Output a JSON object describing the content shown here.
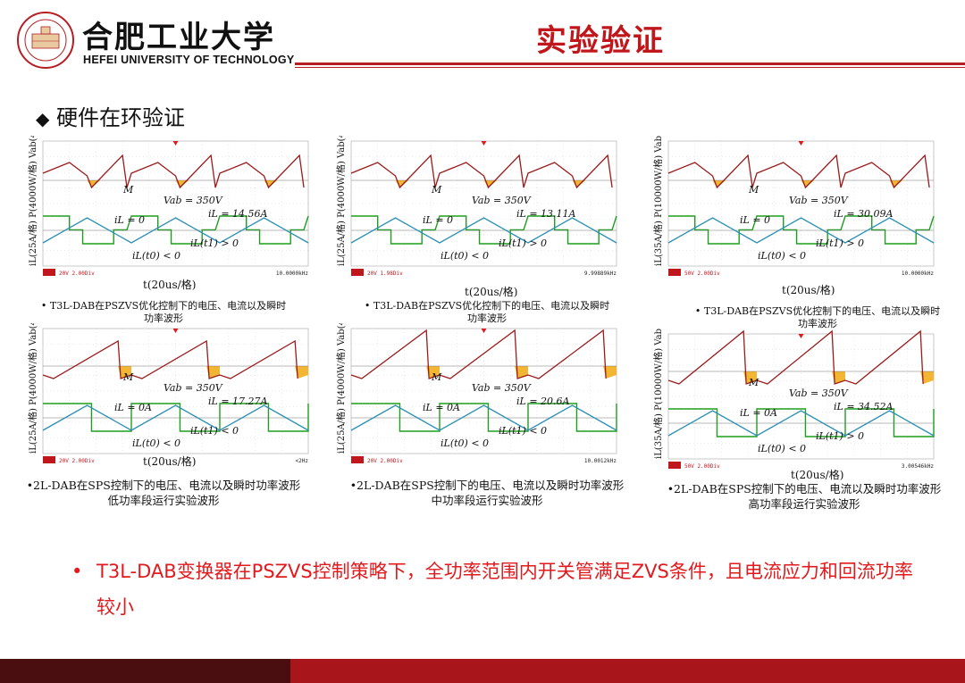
{
  "header": {
    "title": "实验验证",
    "university_cn": "合肥工业大学",
    "university_en": "HEFEI UNIVERSITY OF TECHNOLOGY",
    "accent_color": "#c0171c"
  },
  "section": {
    "bullet_icon": "diamond-icon",
    "heading": "硬件在环验证"
  },
  "panels": [
    {
      "y_label_power": "P(4000W/格)",
      "y_label_voltage": "Vab(400V / 格)",
      "y_label_current": "iL(25A/格)",
      "x_label": "t(20us/格)",
      "annotations": [
        "M",
        "Vab = 350V",
        "iL = 14.56A",
        "iL = 0",
        "iL(t1) > 0",
        "iL(t0) < 0"
      ],
      "status_left": "20V 2.00Div",
      "status_right": "10.0000kHz",
      "caption_line1": "T3L-DAB在PSZVS优化控制下的电压、电流以及瞬时",
      "caption_line2": "功率波形"
    },
    {
      "y_label_power": "P(4000W/格)",
      "y_label_voltage": "Vab(400V / 格)",
      "y_label_current": "iL(25A/格)",
      "x_label": "t(20us/格)",
      "annotations": [
        "M",
        "Vab = 350V",
        "iL = 13.11A",
        "iL = 0",
        "iL(t1) > 0",
        "iL(t0) < 0"
      ],
      "status_left": "20V 1.98Div",
      "status_right": "9.99889kHz",
      "caption_line1": "T3L-DAB在PSZVS优化控制下的电压、电流以及瞬时",
      "caption_line2": "功率波形"
    },
    {
      "y_label_power": "P(10000W/格)",
      "y_label_voltage": "Vab(400V / 格)",
      "y_label_current": "iL(35A/格)",
      "x_label": "t(20us/格)",
      "annotations": [
        "M",
        "Vab = 350V",
        "iL = 30.09A",
        "iL = 0",
        "iL(t1) > 0",
        "iL(t0) < 0"
      ],
      "status_left": "50V 2.00Div",
      "status_right": "10.0000kHz",
      "caption_line1": "T3L-DAB在PSZVS优化控制下的电压、电流以及瞬时",
      "caption_line2": "功率波形"
    },
    {
      "y_label_power": "P(4000W/格)",
      "y_label_voltage": "Vab(400V / 格)",
      "y_label_current": "iL(25A/格)",
      "x_label": "t(20us/格)",
      "annotations": [
        "M",
        "Vab = 350V",
        "iL = 17.27A",
        "iL = 0A",
        "iL(t1) < 0",
        "iL(t0) < 0"
      ],
      "status_left": "20V 2.00Div",
      "status_right": "<2Hz",
      "caption_line1": "•2L-DAB在SPS控制下的电压、电流以及瞬时功率波形",
      "caption_line2": "低功率段运行实验波形"
    },
    {
      "y_label_power": "P(4000W/格)",
      "y_label_voltage": "Vab(400V / 格)",
      "y_label_current": "iL(25A/格)",
      "x_label": "",
      "annotations": [
        "M",
        "Vab = 350V",
        "iL = 20.6A",
        "iL = 0A",
        "iL(t1) < 0",
        "iL(t0) < 0"
      ],
      "status_left": "20V 2.00Div",
      "status_right": "10.0012kHz",
      "caption_line1": "•2L-DAB在SPS控制下的电压、电流以及瞬时功率波形",
      "caption_line2": "中功率段运行实验波形"
    },
    {
      "y_label_power": "P(10000W/格)",
      "y_label_voltage": "Vab(400V / 格)",
      "y_label_current": "iL(35A/格)",
      "x_label": "t(20us/格)",
      "annotations": [
        "M",
        "Vab = 350V",
        "iL = 34.52A",
        "iL = 0A",
        "iL(t1) > 0",
        "iL(t0) < 0"
      ],
      "status_left": "50V 2.00Div",
      "status_right": "3.00546kHz",
      "caption_line1": "•2L-DAB在SPS控制下的电压、电流以及瞬时功率波形",
      "caption_line2": "高功率段运行实验波形"
    }
  ],
  "conclusion": {
    "bullet": "•",
    "text": "T3L-DAB变换器在PSZVS控制策略下，全功率范围内开关管满足ZVS条件，且电流应力和回流功率较小"
  },
  "colors": {
    "power_trace": "#9b1b1b",
    "voltage_trace": "#1e9e1e",
    "current_trace": "#2a8fb5",
    "backflow_fill": "#f2b632"
  }
}
